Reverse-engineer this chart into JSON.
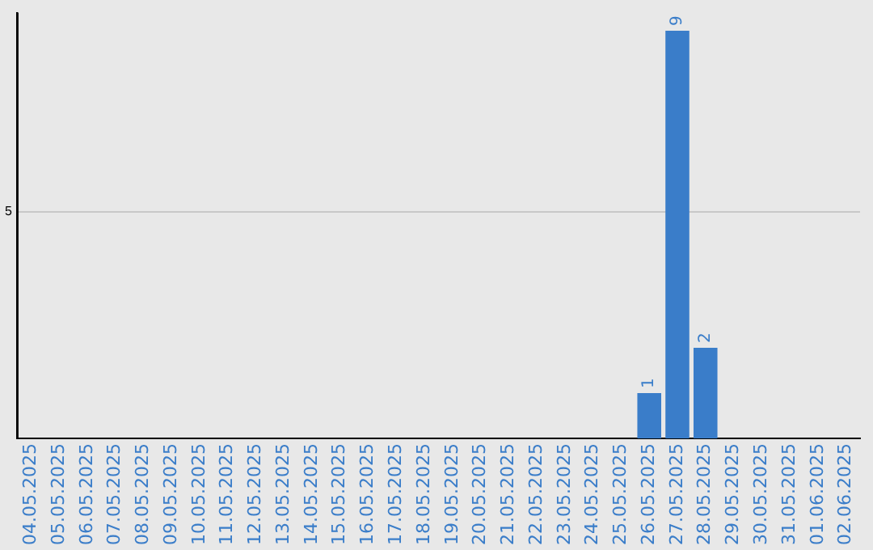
{
  "chart_data": {
    "type": "bar",
    "categories": [
      "04.05.2025",
      "05.05.2025",
      "06.05.2025",
      "07.05.2025",
      "08.05.2025",
      "09.05.2025",
      "10.05.2025",
      "11.05.2025",
      "12.05.2025",
      "13.05.2025",
      "14.05.2025",
      "15.05.2025",
      "16.05.2025",
      "17.05.2025",
      "18.05.2025",
      "19.05.2025",
      "20.05.2025",
      "21.05.2025",
      "22.05.2025",
      "23.05.2025",
      "24.05.2025",
      "25.05.2025",
      "26.05.2025",
      "27.05.2025",
      "28.05.2025",
      "29.05.2025",
      "30.05.2025",
      "31.05.2025",
      "01.06.2025",
      "02.06.2025"
    ],
    "values": [
      null,
      null,
      null,
      null,
      null,
      null,
      null,
      null,
      null,
      null,
      null,
      null,
      null,
      null,
      null,
      null,
      null,
      null,
      null,
      null,
      null,
      null,
      1,
      9,
      2,
      null,
      null,
      null,
      null,
      null
    ],
    "value_labels": [
      null,
      null,
      null,
      null,
      null,
      null,
      null,
      null,
      null,
      null,
      null,
      null,
      null,
      null,
      null,
      null,
      null,
      null,
      null,
      null,
      null,
      null,
      "1",
      "9",
      "2",
      null,
      null,
      null,
      null,
      null
    ],
    "color": "#3a7dc9",
    "ylim": [
      0,
      9.4
    ],
    "yticks": [
      5
    ],
    "grid": "y",
    "legend": false
  }
}
